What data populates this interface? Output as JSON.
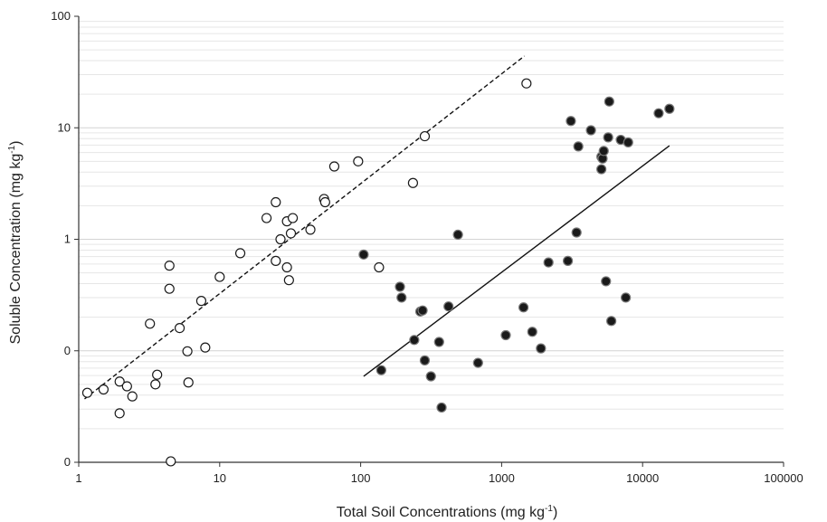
{
  "chart_data": {
    "type": "scatter",
    "xscale": "log",
    "yscale": "log",
    "xlim": [
      1,
      100000
    ],
    "ylim": [
      0.01,
      100
    ],
    "x_ticks": [
      1,
      10,
      100,
      1000,
      10000,
      100000
    ],
    "x_tick_labels": [
      "1",
      "10",
      "100",
      "1000",
      "10000",
      "100000"
    ],
    "y_ticks": [
      0.01,
      0.1,
      1,
      10,
      100
    ],
    "y_tick_labels": [
      "0",
      "0",
      "1",
      "10",
      "100"
    ],
    "xlabel": "Total Soil Concentrations (mg kg",
    "xlabel_sup": "-1",
    "xlabel_end": ")",
    "ylabel": "Soluble Concentration (mg kg",
    "ylabel_sup": "-1",
    "ylabel_end": ")",
    "grid": "horizontal minor lines",
    "series": [
      {
        "marker": "open-circle",
        "fill": "#ffffff",
        "stroke": "#1a1a1a",
        "points": [
          [
            1.15,
            0.042
          ],
          [
            1.5,
            0.045
          ],
          [
            1.95,
            0.053
          ],
          [
            2.2,
            0.048
          ],
          [
            2.4,
            0.039
          ],
          [
            1.95,
            0.0275
          ],
          [
            3.6,
            0.061
          ],
          [
            3.5,
            0.05
          ],
          [
            3.2,
            0.175
          ],
          [
            4.4,
            0.58
          ],
          [
            4.4,
            0.36
          ],
          [
            4.5,
            0.0102
          ],
          [
            5.2,
            0.16
          ],
          [
            5.9,
            0.099
          ],
          [
            6.0,
            0.052
          ],
          [
            7.4,
            0.28
          ],
          [
            7.9,
            0.107
          ],
          [
            10,
            0.46
          ],
          [
            14,
            0.75
          ],
          [
            21.5,
            1.55
          ],
          [
            25,
            2.15
          ],
          [
            25,
            0.64
          ],
          [
            27,
            1.0
          ],
          [
            30,
            1.45
          ],
          [
            30,
            0.56
          ],
          [
            31,
            0.43
          ],
          [
            32,
            1.13
          ],
          [
            33,
            1.55
          ],
          [
            44,
            1.22
          ],
          [
            55,
            2.3
          ],
          [
            56,
            2.15
          ],
          [
            65,
            4.5
          ],
          [
            96,
            5.0
          ],
          [
            135,
            0.56
          ],
          [
            235,
            3.2
          ],
          [
            285,
            8.4
          ],
          [
            1500,
            25.0
          ]
        ]
      },
      {
        "marker": "filled-circle",
        "fill": "#1a1a1a",
        "stroke": "#777777",
        "points": [
          [
            105,
            0.73
          ],
          [
            140,
            0.067
          ],
          [
            190,
            0.375
          ],
          [
            195,
            0.3
          ],
          [
            240,
            0.125
          ],
          [
            265,
            0.225
          ],
          [
            275,
            0.23
          ],
          [
            285,
            0.082
          ],
          [
            315,
            0.059
          ],
          [
            360,
            0.12
          ],
          [
            375,
            0.031
          ],
          [
            420,
            0.25
          ],
          [
            490,
            1.1
          ],
          [
            680,
            0.078
          ],
          [
            1070,
            0.138
          ],
          [
            1430,
            0.245
          ],
          [
            1650,
            0.148
          ],
          [
            1900,
            0.105
          ],
          [
            2150,
            0.62
          ],
          [
            2950,
            0.64
          ],
          [
            3100,
            11.5
          ],
          [
            3500,
            6.8
          ],
          [
            3400,
            1.15
          ],
          [
            4300,
            9.5
          ],
          [
            5100,
            5.5
          ],
          [
            5200,
            5.3
          ],
          [
            5100,
            4.25
          ],
          [
            5300,
            6.2
          ],
          [
            5500,
            0.42
          ],
          [
            5700,
            8.2
          ],
          [
            5800,
            17.2
          ],
          [
            6000,
            0.185
          ],
          [
            7000,
            7.8
          ],
          [
            7600,
            0.3
          ],
          [
            7900,
            7.4
          ],
          [
            13000,
            13.5
          ],
          [
            15500,
            14.8
          ]
        ]
      }
    ],
    "trend_lines": [
      {
        "style": "dashed",
        "from": [
          1.1,
          0.037
        ],
        "to": [
          1450,
          44
        ]
      },
      {
        "style": "solid",
        "from": [
          105,
          0.059
        ],
        "to": [
          15500,
          6.9
        ]
      }
    ]
  }
}
